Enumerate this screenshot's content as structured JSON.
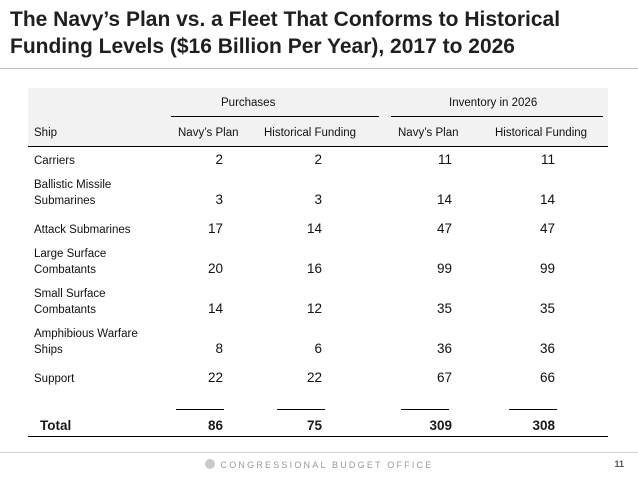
{
  "title": "The Navy’s Plan vs. a Fleet That Conforms to Historical Funding Levels ($16 Billion Per Year), 2017 to 2026",
  "table": {
    "group_headers": {
      "purchases": "Purchases",
      "inventory": "Inventory in 2026"
    },
    "columns": [
      "Ship",
      "Navy’s Plan",
      "Historical Funding",
      "Navy’s Plan",
      "Historical Funding"
    ],
    "rows": [
      {
        "ship": [
          "Carriers"
        ],
        "values": [
          "2",
          "2",
          "11",
          "11"
        ]
      },
      {
        "ship": [
          "Ballistic Missile",
          "Submarines"
        ],
        "values": [
          "3",
          "3",
          "14",
          "14"
        ]
      },
      {
        "ship": [
          "Attack Submarines"
        ],
        "values": [
          "17",
          "14",
          "47",
          "47"
        ]
      },
      {
        "ship": [
          "Large Surface",
          "Combatants"
        ],
        "values": [
          "20",
          "16",
          "99",
          "99"
        ]
      },
      {
        "ship": [
          "Small Surface",
          "Combatants"
        ],
        "values": [
          "14",
          "12",
          "35",
          "35"
        ]
      },
      {
        "ship": [
          "Amphibious Warfare",
          "Ships"
        ],
        "values": [
          "8",
          "6",
          "36",
          "36"
        ]
      },
      {
        "ship": [
          "Support"
        ],
        "values": [
          "22",
          "22",
          "67",
          "66"
        ]
      }
    ],
    "total": {
      "label": "Total",
      "values": [
        "86",
        "75",
        "309",
        "308"
      ]
    }
  },
  "footer": {
    "org": "CONGRESSIONAL BUDGET OFFICE",
    "page": "11"
  }
}
